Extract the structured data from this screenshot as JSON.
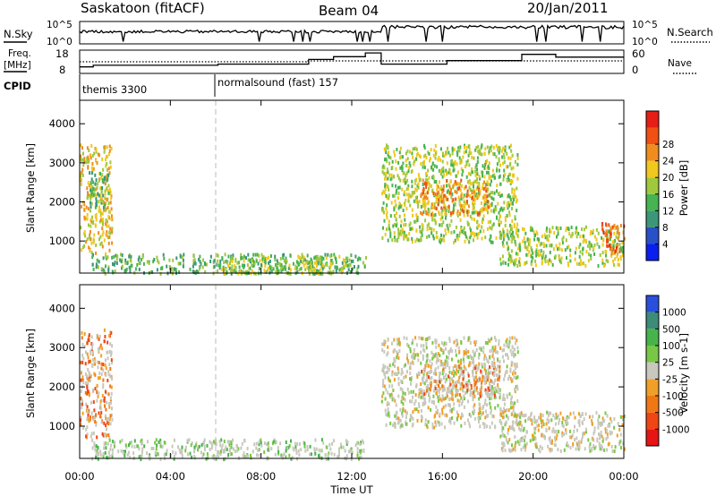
{
  "header": {
    "station": "Saskatoon (fitACF)",
    "beam": "Beam 04",
    "date": "20/Jan/2011"
  },
  "noise_panel": {
    "left_label": "N.Sky",
    "left_ticks": [
      "10^5",
      "10^0"
    ],
    "right_ticks": [
      "10^5",
      "10^0"
    ],
    "right_label": "N.Search"
  },
  "freq_panel": {
    "left_label_1": "Freq.",
    "left_label_2": "[MHz]",
    "left_ticks": [
      "18",
      "8"
    ],
    "right_ticks": [
      "60",
      "0"
    ],
    "right_label": "Nave"
  },
  "cpid_panel": {
    "label": "CPID",
    "programs": [
      {
        "name": "themis 3300",
        "start_hour": 0
      },
      {
        "name": "normalsound (fast) 157",
        "start_hour": 6
      }
    ]
  },
  "colors": {
    "power": [
      "#0a1ef0",
      "#2850c8",
      "#3c9678",
      "#46b450",
      "#a0c83c",
      "#f0c81e",
      "#f08c1e",
      "#f05014",
      "#e61e14"
    ],
    "velocity": [
      "#2850dc",
      "#3c8c78",
      "#46b44b",
      "#78c846",
      "#c8c8be",
      "#f0a028",
      "#f07814",
      "#f04614",
      "#e61414"
    ]
  },
  "chart_data": [
    {
      "type": "heatmap",
      "title": "",
      "quantity": "Power",
      "xlabel": "Time UT",
      "ylabel": "Slant Range [km]",
      "xlim": [
        "00:00",
        "24:00"
      ],
      "ylim": [
        180,
        4600
      ],
      "x_ticks": [
        "00:00",
        "04:00",
        "08:00",
        "12:00",
        "16:00",
        "20:00",
        "00:00"
      ],
      "y_ticks": [
        1000,
        2000,
        3000,
        4000
      ],
      "colorbar_label": "Power [dB]",
      "colorbar_ticks": [
        4,
        8,
        12,
        16,
        20,
        24,
        28
      ],
      "colorbar_range": [
        0,
        30
      ],
      "echo_regions": [
        {
          "hours": [
            0.0,
            1.4
          ],
          "range_km": [
            700,
            3500
          ],
          "level": 20
        },
        {
          "hours": [
            0.4,
            1.3
          ],
          "range_km": [
            1800,
            2800
          ],
          "level": 12
        },
        {
          "hours": [
            0.5,
            12.6
          ],
          "range_km": [
            200,
            700
          ],
          "level": 10
        },
        {
          "hours": [
            6.2,
            11.8
          ],
          "range_km": [
            200,
            650
          ],
          "level": 16
        },
        {
          "hours": [
            13.3,
            19.3
          ],
          "range_km": [
            1000,
            3500
          ],
          "level": 16
        },
        {
          "hours": [
            15.0,
            18.0
          ],
          "range_km": [
            1700,
            2600
          ],
          "level": 24
        },
        {
          "hours": [
            18.5,
            24.0
          ],
          "range_km": [
            400,
            1400
          ],
          "level": 14
        },
        {
          "hours": [
            23.0,
            24.0
          ],
          "range_km": [
            700,
            1500
          ],
          "level": 26
        }
      ]
    },
    {
      "type": "heatmap",
      "title": "",
      "quantity": "Velocity",
      "xlabel": "Time UT",
      "ylabel": "Slant Range [km]",
      "xlim": [
        "00:00",
        "24:00"
      ],
      "ylim": [
        180,
        4600
      ],
      "x_ticks": [
        "00:00",
        "04:00",
        "08:00",
        "12:00",
        "16:00",
        "20:00",
        "00:00"
      ],
      "y_ticks": [
        1000,
        2000,
        3000,
        4000
      ],
      "colorbar_label": "Velocity [m s-1]",
      "colorbar_ticks": [
        "1000",
        "500",
        "100",
        "25",
        "-25",
        "-100",
        "-500",
        "-1000"
      ],
      "echo_regions": [
        {
          "hours": [
            0.0,
            1.4
          ],
          "range_km": [
            700,
            3500
          ],
          "level": -100
        },
        {
          "hours": [
            0.5,
            12.6
          ],
          "range_km": [
            200,
            700
          ],
          "level": 25
        },
        {
          "hours": [
            13.3,
            19.3
          ],
          "range_km": [
            1000,
            3300
          ],
          "level": 0
        },
        {
          "hours": [
            15.0,
            18.5
          ],
          "range_km": [
            1800,
            2600
          ],
          "level": -200
        },
        {
          "hours": [
            18.5,
            24.0
          ],
          "range_km": [
            400,
            1400
          ],
          "level": 0
        }
      ]
    }
  ]
}
